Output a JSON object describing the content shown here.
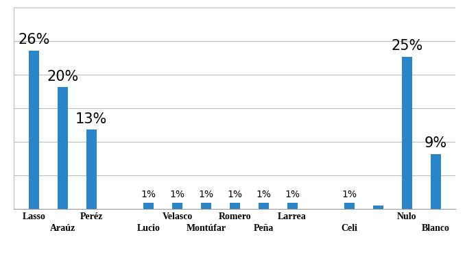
{
  "chart_data": {
    "type": "bar",
    "categories": [
      "Lasso",
      "Araúz",
      "Peréz",
      null,
      "Lucio",
      "Velasco",
      "Montúfar",
      "Romero",
      "Peña",
      "Larrea",
      null,
      "Celi",
      null,
      "Nulo",
      "Blanco"
    ],
    "values": [
      26,
      20,
      13,
      null,
      1,
      1,
      1,
      1,
      1,
      1,
      null,
      1,
      0.5,
      25,
      9
    ],
    "value_labels": [
      "26%",
      "20%",
      "13%",
      null,
      "1%",
      "1%",
      "1%",
      "1%",
      "1%",
      "1%",
      null,
      "1%",
      null,
      "25%",
      "9%"
    ],
    "color": "#2a86c8",
    "ylim": [
      0,
      33
    ],
    "yticks": [
      0,
      5.5,
      11,
      16.5,
      22,
      27.5,
      33
    ],
    "grid": true,
    "data_labels": true,
    "tick_labels": "x"
  }
}
